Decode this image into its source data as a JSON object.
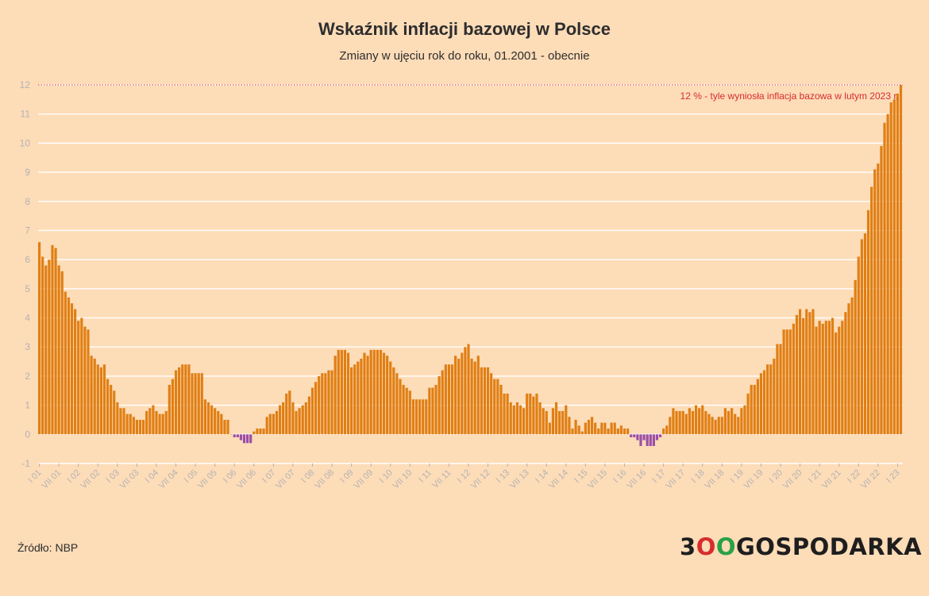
{
  "header": {
    "title": "Wskaźnik inflacji bazowej w Polsce",
    "subtitle": "Zmiany w ujęciu rok do roku, 01.2001 - obecnie"
  },
  "footer": {
    "source": "Źródło: NBP",
    "logo_prefix": "3",
    "logo_o1": "O",
    "logo_o2": "O",
    "logo_suffix": "GOSPODARKA"
  },
  "colors": {
    "positive_bar": "#e07f14",
    "negative_bar": "#9a4fa8",
    "reference_line": "#d62d2d",
    "grid": "#ffffff",
    "axis_text": "#b3b3b3",
    "logo_red": "#d62d2d",
    "logo_green": "#2aa04a"
  },
  "chart_data": {
    "type": "bar",
    "title": "Wskaźnik inflacji bazowej w Polsce",
    "subtitle": "Zmiany w ujęciu rok do roku, 01.2001 - obecnie",
    "x_start": "2001-01",
    "x_end": "2023-02",
    "ylim": [
      -1,
      12
    ],
    "yticks": [
      -1,
      0,
      1,
      2,
      3,
      4,
      5,
      6,
      7,
      8,
      9,
      10,
      11,
      12
    ],
    "grid": true,
    "legend": "none",
    "xtick_labels": [
      "I 01",
      "VII 01",
      "I 02",
      "VII 02",
      "I 03",
      "VII 03",
      "I 04",
      "VII 04",
      "I 05",
      "VII 05",
      "I 06",
      "VII 06",
      "I 07",
      "VII 07",
      "I 08",
      "VII 08",
      "I 09",
      "VII 09",
      "I 10",
      "VII 10",
      "I 11",
      "VII 11",
      "I 12",
      "VII 12",
      "I 13",
      "VII 13",
      "I 14",
      "VII 14",
      "I 15",
      "VII 15",
      "I 16",
      "VII 16",
      "I 17",
      "VII 17",
      "I 18",
      "VII 18",
      "I 19",
      "VII 19",
      "I 20",
      "VII 20",
      "I 21",
      "VII 21",
      "I 22",
      "VII 22",
      "I 23"
    ],
    "annotation": {
      "text": "12 % - tyle wyniosła inflacja bazowa w lutym 2023 r.",
      "y": 12
    },
    "values": [
      6.6,
      6.1,
      5.8,
      6.0,
      6.5,
      6.4,
      5.8,
      5.6,
      4.9,
      4.7,
      4.5,
      4.3,
      3.9,
      4.0,
      3.7,
      3.6,
      2.7,
      2.6,
      2.4,
      2.3,
      2.4,
      1.9,
      1.7,
      1.5,
      1.1,
      0.9,
      0.9,
      0.7,
      0.7,
      0.6,
      0.5,
      0.5,
      0.5,
      0.8,
      0.9,
      1.0,
      0.8,
      0.7,
      0.7,
      0.8,
      1.7,
      1.9,
      2.2,
      2.3,
      2.4,
      2.4,
      2.4,
      2.1,
      2.1,
      2.1,
      2.1,
      1.2,
      1.1,
      1.0,
      0.9,
      0.8,
      0.7,
      0.5,
      0.5,
      0.0,
      -0.1,
      -0.1,
      -0.2,
      -0.3,
      -0.3,
      -0.3,
      0.1,
      0.2,
      0.2,
      0.2,
      0.6,
      0.7,
      0.7,
      0.8,
      1.0,
      1.1,
      1.4,
      1.5,
      1.1,
      0.8,
      0.9,
      1.0,
      1.1,
      1.3,
      1.6,
      1.8,
      2.0,
      2.1,
      2.1,
      2.2,
      2.2,
      2.7,
      2.9,
      2.9,
      2.9,
      2.8,
      2.3,
      2.4,
      2.5,
      2.6,
      2.8,
      2.7,
      2.9,
      2.9,
      2.9,
      2.9,
      2.8,
      2.7,
      2.5,
      2.3,
      2.1,
      1.9,
      1.7,
      1.6,
      1.5,
      1.2,
      1.2,
      1.2,
      1.2,
      1.2,
      1.6,
      1.6,
      1.7,
      2.0,
      2.2,
      2.4,
      2.4,
      2.4,
      2.7,
      2.6,
      2.8,
      3.0,
      3.1,
      2.6,
      2.5,
      2.7,
      2.3,
      2.3,
      2.3,
      2.1,
      1.9,
      1.9,
      1.7,
      1.4,
      1.4,
      1.1,
      1.0,
      1.1,
      1.0,
      0.9,
      1.4,
      1.4,
      1.3,
      1.4,
      1.1,
      0.9,
      0.8,
      0.4,
      0.9,
      1.1,
      0.8,
      0.8,
      1.0,
      0.6,
      0.2,
      0.5,
      0.3,
      0.1,
      0.4,
      0.5,
      0.6,
      0.4,
      0.2,
      0.4,
      0.4,
      0.2,
      0.4,
      0.4,
      0.2,
      0.3,
      0.2,
      0.2,
      -0.1,
      -0.1,
      -0.2,
      -0.4,
      -0.2,
      -0.4,
      -0.4,
      -0.4,
      -0.2,
      -0.1,
      0.2,
      0.3,
      0.6,
      0.9,
      0.8,
      0.8,
      0.8,
      0.7,
      0.9,
      0.8,
      1.0,
      0.9,
      1.0,
      0.8,
      0.7,
      0.6,
      0.5,
      0.6,
      0.6,
      0.9,
      0.8,
      0.9,
      0.7,
      0.6,
      0.9,
      1.0,
      1.4,
      1.7,
      1.7,
      1.9,
      2.1,
      2.2,
      2.4,
      2.4,
      2.6,
      3.1,
      3.1,
      3.6,
      3.6,
      3.6,
      3.8,
      4.1,
      4.3,
      4.0,
      4.3,
      4.2,
      4.3,
      3.7,
      3.9,
      3.8,
      3.9,
      3.9,
      4.0,
      3.5,
      3.7,
      3.9,
      4.2,
      4.5,
      4.7,
      5.3,
      6.1,
      6.7,
      6.9,
      7.7,
      8.5,
      9.1,
      9.3,
      9.9,
      10.7,
      11.0,
      11.4,
      11.5,
      11.7,
      12.0
    ]
  }
}
